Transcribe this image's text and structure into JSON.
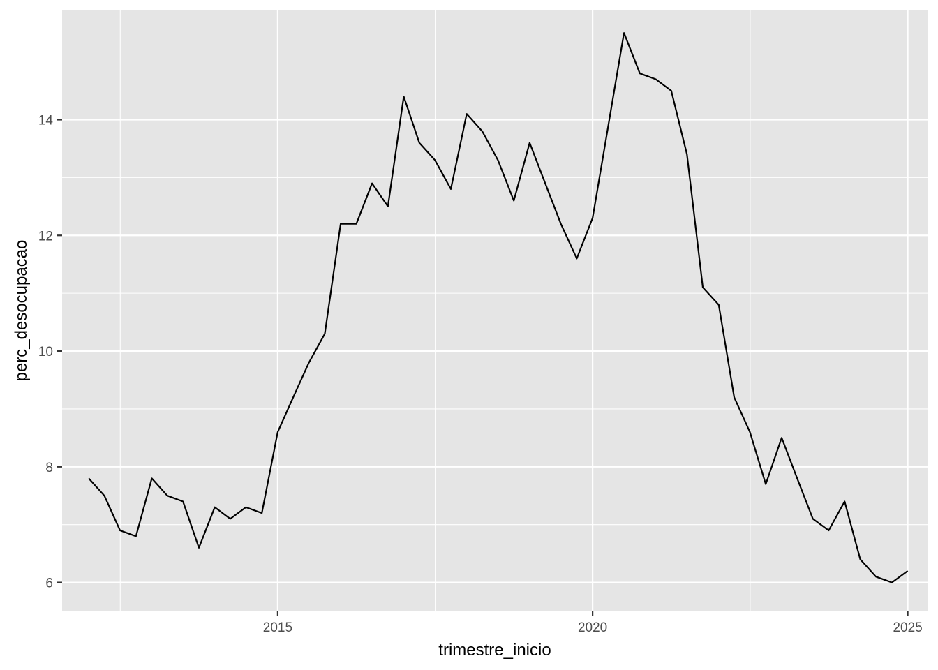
{
  "chart_data": {
    "type": "line",
    "xlabel": "trimestre_inicio",
    "ylabel": "perc_desocupacao",
    "x_tick_labels": [
      "2015",
      "2020",
      "2025"
    ],
    "y_tick_labels": [
      "6",
      "8",
      "10",
      "12",
      "14"
    ],
    "xlim": [
      "2011-07-31",
      "2025-04-30"
    ],
    "ylim": [
      5.5,
      15.9
    ],
    "grid": true,
    "panel_background": "#e5e5e5",
    "gridline_color": "#ffffff",
    "line_color": "#000000",
    "series": [
      {
        "x": [
          "2012-01-01",
          "2012-04-01",
          "2012-07-01",
          "2012-10-01",
          "2013-01-01",
          "2013-04-01",
          "2013-07-01",
          "2013-10-01",
          "2014-01-01",
          "2014-04-01",
          "2014-07-01",
          "2014-10-01",
          "2015-01-01",
          "2015-04-01",
          "2015-07-01",
          "2015-10-01",
          "2016-01-01",
          "2016-04-01",
          "2016-07-01",
          "2016-10-01",
          "2017-01-01",
          "2017-04-01",
          "2017-07-01",
          "2017-10-01",
          "2018-01-01",
          "2018-04-01",
          "2018-07-01",
          "2018-10-01",
          "2019-01-01",
          "2019-04-01",
          "2019-07-01",
          "2019-10-01",
          "2020-01-01",
          "2020-04-01",
          "2020-07-01",
          "2020-10-01",
          "2021-01-01",
          "2021-04-01",
          "2021-07-01",
          "2021-10-01",
          "2022-01-01",
          "2022-04-01",
          "2022-07-01",
          "2022-10-01",
          "2023-01-01",
          "2023-04-01",
          "2023-07-01",
          "2023-10-01",
          "2024-01-01",
          "2024-04-01",
          "2024-07-01",
          "2024-10-01",
          "2025-01-01"
        ],
        "values": [
          7.8,
          7.5,
          6.9,
          6.8,
          7.8,
          7.5,
          7.4,
          6.6,
          7.3,
          7.1,
          7.3,
          7.2,
          8.6,
          9.2,
          9.8,
          10.3,
          12.2,
          12.2,
          12.9,
          12.5,
          14.4,
          13.6,
          13.3,
          12.8,
          14.1,
          13.8,
          13.3,
          12.6,
          13.6,
          12.9,
          12.2,
          11.6,
          12.3,
          13.9,
          15.5,
          14.8,
          14.7,
          14.5,
          13.4,
          11.1,
          10.8,
          9.2,
          8.6,
          7.7,
          8.5,
          7.8,
          7.1,
          6.9,
          7.4,
          6.4,
          6.1,
          6.0,
          6.2
        ]
      }
    ]
  }
}
